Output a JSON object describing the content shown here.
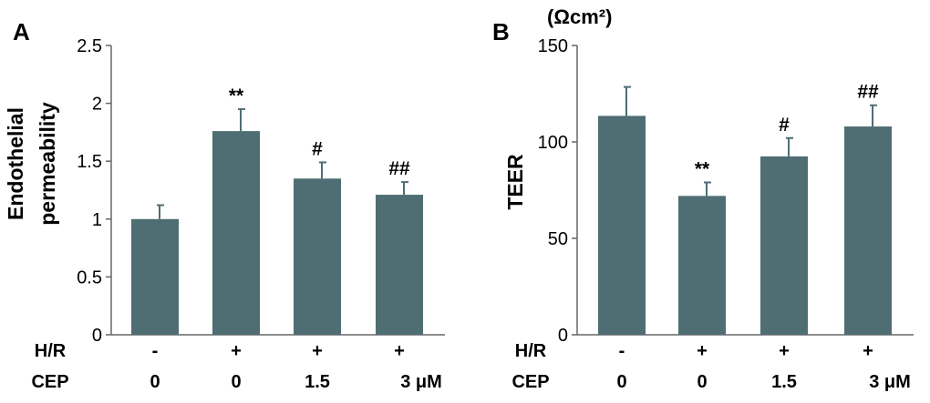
{
  "chart_data": [
    {
      "type": "bar",
      "panel": "A",
      "ylabel": [
        "Endothelial",
        "permeability"
      ],
      "ylim": [
        0,
        2.5
      ],
      "yticks": [
        "0",
        "0.5",
        "1",
        "1.5",
        "2",
        "2.5"
      ],
      "ytick_values": [
        0,
        0.5,
        1,
        1.5,
        2,
        2.5
      ],
      "values": [
        1.0,
        1.76,
        1.35,
        1.21
      ],
      "errors": [
        0.12,
        0.19,
        0.14,
        0.11
      ],
      "annotations": [
        "",
        "**",
        "#",
        "##"
      ],
      "conditions": [
        {
          "name": "H/R",
          "values": [
            "-",
            "+",
            "+",
            "+"
          ]
        },
        {
          "name": "CEP",
          "values": [
            "0",
            "0",
            "1.5",
            "3 μM"
          ]
        }
      ],
      "bar_color": "#4f6e73"
    },
    {
      "type": "bar",
      "panel": "B",
      "ylabel": [
        "TEER"
      ],
      "unit_label": "(Ωcm²)",
      "ylim": [
        0,
        150
      ],
      "yticks": [
        "0",
        "50",
        "100",
        "150"
      ],
      "ytick_values": [
        0,
        50,
        100,
        150
      ],
      "values": [
        113.5,
        72,
        92.5,
        108
      ],
      "errors": [
        15,
        7,
        9.5,
        11
      ],
      "annotations": [
        "",
        "**",
        "#",
        "##"
      ],
      "conditions": [
        {
          "name": "H/R",
          "values": [
            "-",
            "+",
            "+",
            "+"
          ]
        },
        {
          "name": "CEP",
          "values": [
            "0",
            "0",
            "1.5",
            "3 μM"
          ]
        }
      ],
      "bar_color": "#4f6e73"
    }
  ]
}
